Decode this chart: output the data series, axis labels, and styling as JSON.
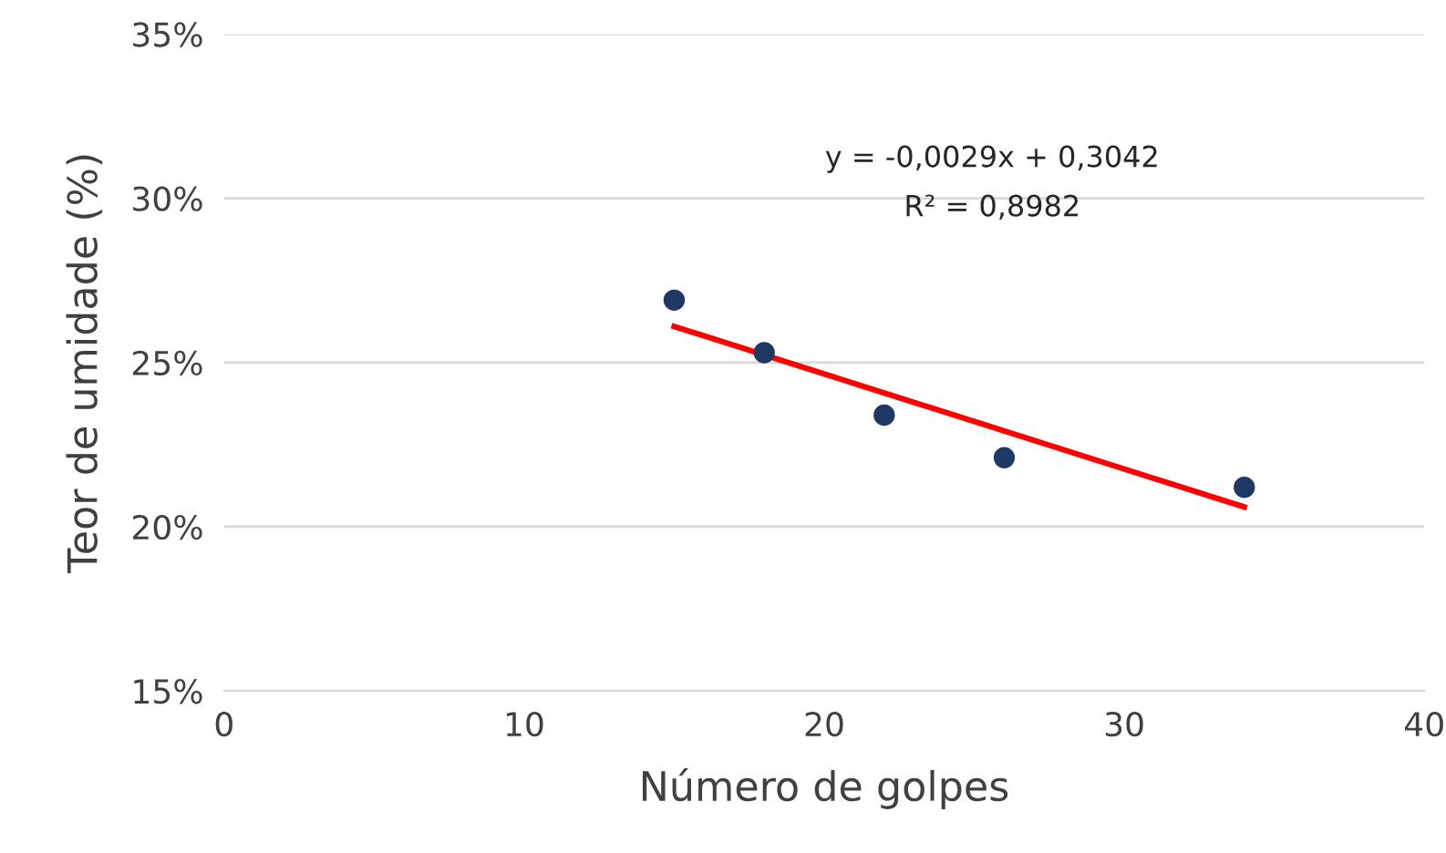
{
  "chart_data": {
    "type": "scatter",
    "xlabel": "Número de golpes",
    "ylabel": "Teor de umidade (%)",
    "xlim": [
      0,
      40
    ],
    "xticks": [
      0,
      10,
      20,
      30,
      40
    ],
    "ylim": [
      15,
      35
    ],
    "yticks": [
      {
        "value": 15,
        "label": "15%"
      },
      {
        "value": 20,
        "label": "20%"
      },
      {
        "value": 25,
        "label": "25%"
      },
      {
        "value": 30,
        "label": "30%"
      },
      {
        "value": 35,
        "label": "35%"
      }
    ],
    "grid": "y",
    "series": [
      {
        "marker": "circle",
        "color": "#203864",
        "x": [
          15,
          18,
          22,
          26,
          34
        ],
        "values": [
          26.9,
          25.3,
          23.4,
          22.1,
          21.2
        ]
      },
      {
        "type": "line",
        "color": "#ff0000",
        "line_style": "solid",
        "x": [
          15,
          34
        ],
        "values": [
          26.1,
          20.6
        ]
      }
    ],
    "annotations": [
      "y = -0,0029x + 0,3042",
      "R² = 0,8982"
    ]
  }
}
